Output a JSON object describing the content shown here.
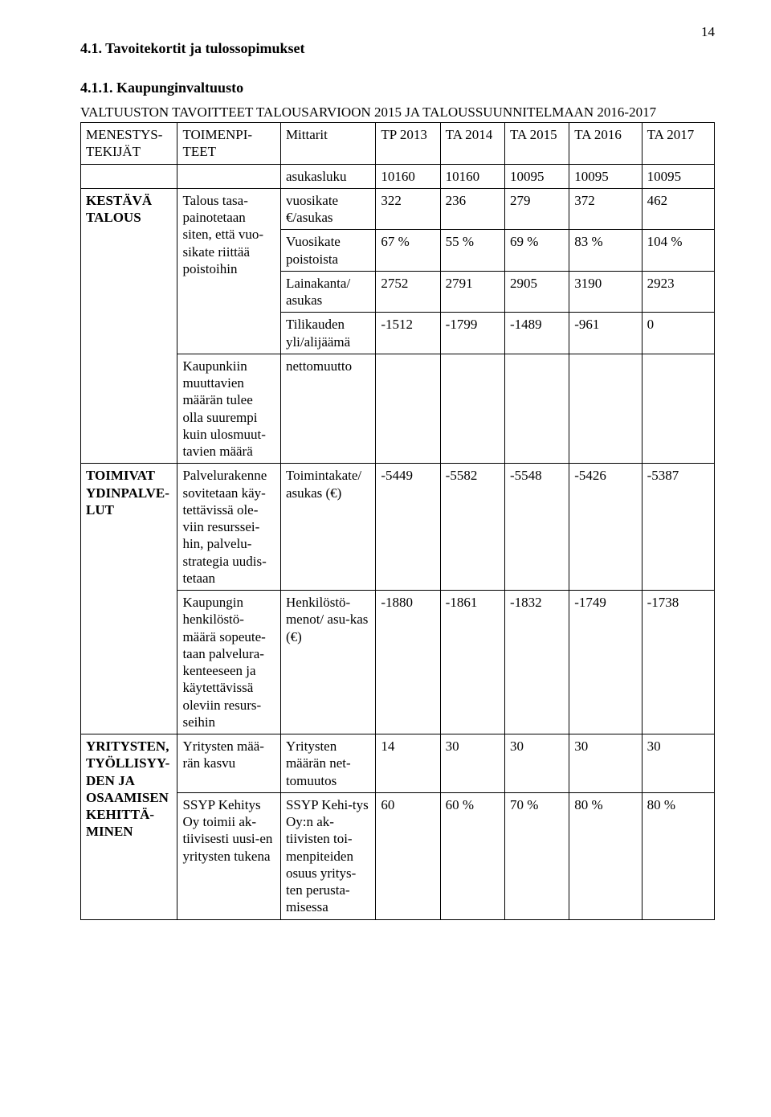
{
  "page_number": "14",
  "heading1": "4.1.   Tavoitekortit ja tulossopimukset",
  "heading2": "4.1.1.   Kaupunginvaltuusto",
  "table_title": "VALTUUSTON TAVOITTEET TALOUSARVIOON 2015 JA TALOUSSUUNNITELMAAN 2016-2017",
  "headers": {
    "c0": "MENESTYS-TEKIJÄT",
    "c1": "TOIMENPI-TEET",
    "c2": "Mittarit",
    "c3": "TP 2013",
    "c4": "TA 2014",
    "c5": "TA 2015",
    "c6": "TA 2016",
    "c7": "TA 2017"
  },
  "row_asukasluku": {
    "c2": "asukasluku",
    "c3": "10160",
    "c4": "10160",
    "c5": "10095",
    "c6": "10095",
    "c7": "10095"
  },
  "group1": {
    "menestys": "KESTÄVÄ TALOUS",
    "toimenpide1": "Talous tasa-painotetaan siten, että vuo-sikate riittää poistoihin",
    "r1": {
      "c2": "vuosikate €/asukas",
      "c3": "322",
      "c4": "236",
      "c5": "279",
      "c6": "372",
      "c7": "462"
    },
    "r2": {
      "c2": "Vuosikate poistoista",
      "c3": "67 %",
      "c4": "55 %",
      "c5": "69 %",
      "c6": "83 %",
      "c7": "104 %"
    },
    "r3": {
      "c2": "Lainakanta/ asukas",
      "c3": "2752",
      "c4": "2791",
      "c5": "2905",
      "c6": "3190",
      "c7": "2923"
    },
    "r4": {
      "c2": "Tilikauden yli/alijäämä",
      "c3": "-1512",
      "c4": "-1799",
      "c5": "-1489",
      "c6": "-961",
      "c7": "0"
    },
    "toimenpide2": "Kaupunkiin muuttavien määrän tulee olla suurempi kuin ulosmuut-tavien määrä",
    "r5": {
      "c2": "nettomuutto"
    }
  },
  "group2": {
    "menestys": "TOIMIVAT YDINPALVE-LUT",
    "toimenpide1": "Palvelurakenne sovitetaan käy-tettävissä ole-viin resurssei-hin, palvelu-strategia uudis-tetaan",
    "r1": {
      "c2": "Toimintakate/ asukas (€)",
      "c3": "-5449",
      "c4": "-5582",
      "c5": "-5548",
      "c6": "-5426",
      "c7": "-5387"
    },
    "toimenpide2": "Kaupungin henkilöstö-määrä sopeute-taan palvelura-kenteeseen ja käytettävissä oleviin resurs-seihin",
    "r2": {
      "c2": "Henkilöstö-menot/ asu-kas (€)",
      "c3": "-1880",
      "c4": "-1861",
      "c5": "-1832",
      "c6": "-1749",
      "c7": "-1738"
    }
  },
  "group3": {
    "menestys": "YRITYSTEN, TYÖLLISYY-DEN JA OSAAMISEN KEHITTÄ-MINEN",
    "toimenpide1": "Yritysten mää-rän kasvu",
    "r1": {
      "c2": "Yritysten määrän net-tomuutos",
      "c3": "14",
      "c4": "30",
      "c5": "30",
      "c6": "30",
      "c7": "30"
    },
    "toimenpide2": "SSYP Kehitys Oy toimii ak-tiivisesti uusi-en yritysten tukena",
    "r2": {
      "c2": "SSYP Kehi-tys Oy:n ak-tiivisten toi-menpiteiden osuus yritys-ten perusta-misessa",
      "c3": "60",
      "c4": "60 %",
      "c5": "70 %",
      "c6": "80 %",
      "c7": "80 %"
    }
  }
}
